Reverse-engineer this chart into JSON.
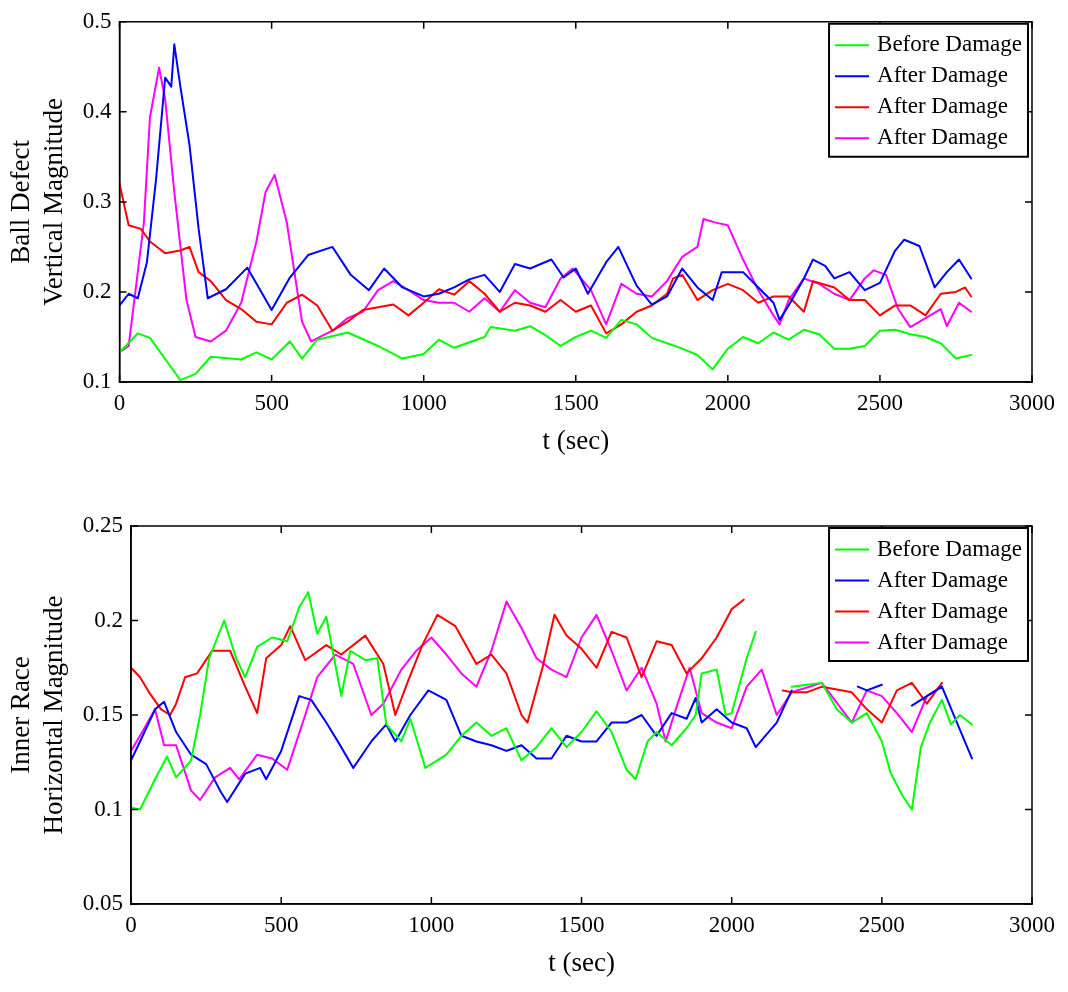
{
  "chart_data": [
    {
      "type": "line",
      "xlabel": "t (sec)",
      "ylabel": "Ball Defect\nVertical Magnitude",
      "xlim": [
        0,
        3000
      ],
      "xticks": [
        0,
        500,
        1000,
        1500,
        2000,
        2500,
        3000
      ],
      "ylim": [
        0.1,
        0.5
      ],
      "yticks": [
        0.1,
        0.2,
        0.3,
        0.4,
        0.5
      ],
      "legend": "top right",
      "series": [
        {
          "name": "Before Damage",
          "color": "#00ff00",
          "x": [
            0,
            60,
            100,
            200,
            250,
            300,
            400,
            450,
            500,
            560,
            600,
            650,
            750,
            850,
            930,
            1000,
            1050,
            1100,
            1200,
            1220,
            1300,
            1350,
            1400,
            1450,
            1500,
            1550,
            1600,
            1650,
            1700,
            1750,
            1800,
            1850,
            1900,
            1950,
            2000,
            2050,
            2100,
            2150,
            2200,
            2250,
            2300,
            2350,
            2400,
            2450,
            2500,
            2550,
            2600,
            2650,
            2700,
            2750,
            2800
          ],
          "values": [
            0.133,
            0.154,
            0.149,
            0.102,
            0.109,
            0.128,
            0.125,
            0.133,
            0.125,
            0.145,
            0.126,
            0.147,
            0.155,
            0.14,
            0.126,
            0.131,
            0.147,
            0.138,
            0.15,
            0.161,
            0.157,
            0.162,
            0.152,
            0.14,
            0.15,
            0.157,
            0.149,
            0.169,
            0.164,
            0.149,
            0.143,
            0.137,
            0.13,
            0.114,
            0.137,
            0.15,
            0.143,
            0.155,
            0.147,
            0.158,
            0.153,
            0.137,
            0.137,
            0.14,
            0.157,
            0.158,
            0.153,
            0.15,
            0.143,
            0.126,
            0.13
          ]
        },
        {
          "name": "After Damage",
          "color": "#0000ff",
          "x": [
            0,
            30,
            60,
            90,
            120,
            150,
            170,
            180,
            200,
            230,
            260,
            290,
            350,
            420,
            500,
            560,
            620,
            700,
            760,
            820,
            870,
            930,
            1000,
            1050,
            1100,
            1150,
            1200,
            1250,
            1300,
            1350,
            1420,
            1460,
            1500,
            1540,
            1600,
            1640,
            1700,
            1750,
            1800,
            1850,
            1900,
            1950,
            1980,
            2050,
            2100,
            2150,
            2170,
            2200,
            2250,
            2280,
            2320,
            2350,
            2400,
            2450,
            2500,
            2550,
            2580,
            2630,
            2680,
            2720,
            2760,
            2800
          ],
          "values": [
            0.185,
            0.198,
            0.193,
            0.233,
            0.325,
            0.438,
            0.428,
            0.475,
            0.428,
            0.363,
            0.27,
            0.193,
            0.203,
            0.227,
            0.18,
            0.216,
            0.241,
            0.25,
            0.219,
            0.202,
            0.226,
            0.205,
            0.195,
            0.198,
            0.205,
            0.214,
            0.219,
            0.2,
            0.231,
            0.226,
            0.236,
            0.216,
            0.226,
            0.198,
            0.233,
            0.25,
            0.207,
            0.186,
            0.195,
            0.226,
            0.205,
            0.191,
            0.222,
            0.222,
            0.205,
            0.188,
            0.169,
            0.185,
            0.215,
            0.236,
            0.229,
            0.215,
            0.222,
            0.202,
            0.21,
            0.246,
            0.258,
            0.251,
            0.205,
            0.222,
            0.236,
            0.215
          ]
        },
        {
          "name": "After Damage",
          "color": "#ff0000",
          "x": [
            0,
            30,
            70,
            100,
            150,
            200,
            230,
            260,
            300,
            350,
            400,
            450,
            500,
            550,
            600,
            650,
            700,
            750,
            800,
            850,
            900,
            950,
            1000,
            1050,
            1100,
            1150,
            1200,
            1250,
            1300,
            1350,
            1400,
            1450,
            1500,
            1550,
            1600,
            1650,
            1700,
            1750,
            1800,
            1820,
            1850,
            1900,
            1950,
            2000,
            2050,
            2100,
            2150,
            2200,
            2250,
            2280,
            2350,
            2400,
            2450,
            2500,
            2550,
            2600,
            2650,
            2700,
            2750,
            2780,
            2800
          ],
          "values": [
            0.32,
            0.274,
            0.27,
            0.256,
            0.243,
            0.246,
            0.25,
            0.222,
            0.212,
            0.191,
            0.181,
            0.167,
            0.164,
            0.188,
            0.197,
            0.185,
            0.157,
            0.167,
            0.18,
            0.183,
            0.186,
            0.174,
            0.188,
            0.203,
            0.197,
            0.212,
            0.198,
            0.178,
            0.188,
            0.185,
            0.178,
            0.191,
            0.178,
            0.185,
            0.154,
            0.164,
            0.178,
            0.185,
            0.198,
            0.215,
            0.219,
            0.191,
            0.202,
            0.209,
            0.202,
            0.188,
            0.195,
            0.195,
            0.178,
            0.212,
            0.205,
            0.191,
            0.191,
            0.174,
            0.185,
            0.185,
            0.174,
            0.198,
            0.2,
            0.205,
            0.195
          ]
        },
        {
          "name": "After Damage",
          "color": "#ff00ff",
          "x": [
            0,
            30,
            80,
            100,
            130,
            150,
            180,
            220,
            250,
            300,
            350,
            400,
            450,
            480,
            510,
            550,
            600,
            630,
            700,
            750,
            800,
            850,
            900,
            950,
            1000,
            1050,
            1100,
            1150,
            1200,
            1250,
            1300,
            1350,
            1400,
            1450,
            1490,
            1550,
            1600,
            1650,
            1700,
            1750,
            1800,
            1850,
            1900,
            1920,
            1960,
            2000,
            2050,
            2100,
            2150,
            2170,
            2200,
            2250,
            2300,
            2350,
            2400,
            2450,
            2480,
            2520,
            2560,
            2600,
            2650,
            2700,
            2720,
            2760,
            2800
          ],
          "values": [
            0.133,
            0.14,
            0.277,
            0.394,
            0.449,
            0.414,
            0.311,
            0.191,
            0.15,
            0.145,
            0.157,
            0.188,
            0.256,
            0.311,
            0.33,
            0.277,
            0.167,
            0.145,
            0.157,
            0.171,
            0.178,
            0.202,
            0.212,
            0.202,
            0.191,
            0.188,
            0.188,
            0.178,
            0.193,
            0.178,
            0.202,
            0.188,
            0.183,
            0.215,
            0.226,
            0.202,
            0.164,
            0.209,
            0.198,
            0.195,
            0.212,
            0.239,
            0.25,
            0.281,
            0.277,
            0.274,
            0.236,
            0.202,
            0.174,
            0.164,
            0.191,
            0.215,
            0.209,
            0.198,
            0.191,
            0.215,
            0.224,
            0.219,
            0.181,
            0.161,
            0.171,
            0.181,
            0.162,
            0.188,
            0.178
          ]
        }
      ]
    },
    {
      "type": "line",
      "xlabel": "t (sec)",
      "ylabel": "Inner Race\nHorizontal Magnitude",
      "xlim": [
        0,
        3000
      ],
      "xticks": [
        0,
        500,
        1000,
        1500,
        2000,
        2500,
        3000
      ],
      "ylim": [
        0.05,
        0.25
      ],
      "yticks": [
        0.05,
        0.1,
        0.15,
        0.2,
        0.25
      ],
      "legend": "top right",
      "series": [
        {
          "name": "Before Damage",
          "color": "#00ff00",
          "x": [
            0,
            30,
            80,
            120,
            150,
            200,
            230,
            260,
            310,
            350,
            380,
            420,
            470,
            520,
            560,
            590,
            620,
            650,
            700,
            730,
            780,
            820,
            850,
            900,
            930,
            980,
            1050,
            1100,
            1150,
            1200,
            1250,
            1300,
            1350,
            1400,
            1450,
            1500,
            1550,
            1600,
            1650,
            1680,
            1720,
            1750,
            1800,
            1850,
            1880,
            1900,
            1950,
            1980,
            2000,
            2050,
            2080,
            2130,
            2200,
            2250,
            2300,
            2350,
            2400,
            2450,
            2500,
            2530,
            2570,
            2600,
            2630,
            2660,
            2700,
            2730,
            2760,
            2800
          ],
          "values": [
            0.101,
            0.1,
            0.116,
            0.128,
            0.117,
            0.126,
            0.15,
            0.18,
            0.2,
            0.18,
            0.17,
            0.186,
            0.191,
            0.189,
            0.207,
            0.215,
            0.193,
            0.202,
            0.16,
            0.184,
            0.179,
            0.18,
            0.145,
            0.136,
            0.148,
            0.122,
            0.129,
            0.139,
            0.146,
            0.139,
            0.143,
            0.126,
            0.133,
            0.143,
            0.133,
            0.141,
            0.152,
            0.141,
            0.121,
            0.116,
            0.136,
            0.141,
            0.134,
            0.143,
            0.15,
            0.172,
            0.174,
            0.15,
            0.151,
            0.18,
            0.194,
            null,
            0.165,
            0.166,
            0.167,
            0.153,
            0.146,
            0.151,
            0.136,
            0.119,
            0.107,
            0.1,
            0.133,
            0.146,
            0.158,
            0.145,
            0.15,
            0.145
          ]
        },
        {
          "name": "After Damage",
          "color": "#0000ff",
          "x": [
            0,
            30,
            80,
            110,
            150,
            200,
            250,
            300,
            320,
            380,
            430,
            450,
            500,
            560,
            600,
            650,
            700,
            740,
            800,
            850,
            880,
            930,
            990,
            1050,
            1100,
            1150,
            1200,
            1250,
            1300,
            1350,
            1400,
            1450,
            1500,
            1550,
            1600,
            1650,
            1700,
            1750,
            1800,
            1850,
            1880,
            1900,
            1950,
            2000,
            2050,
            2080,
            2150,
            2200,
            2300,
            2420,
            2450,
            2500,
            2550,
            2600,
            2650,
            2700,
            2750,
            2800
          ],
          "values": [
            0.126,
            0.136,
            0.153,
            0.157,
            0.141,
            0.129,
            0.124,
            0.109,
            0.104,
            0.119,
            0.122,
            0.116,
            0.131,
            0.16,
            0.158,
            0.146,
            0.133,
            0.122,
            0.136,
            0.145,
            0.136,
            0.15,
            0.163,
            0.158,
            0.139,
            0.136,
            0.134,
            0.131,
            0.134,
            0.127,
            0.127,
            0.139,
            0.136,
            0.136,
            0.146,
            0.146,
            0.15,
            0.139,
            0.151,
            0.148,
            0.159,
            0.146,
            0.153,
            0.146,
            0.143,
            0.133,
            0.146,
            0.163,
            null,
            0.165,
            0.163,
            0.166,
            null,
            0.155,
            0.16,
            0.165,
            0.146,
            0.127
          ]
        },
        {
          "name": "After Damage",
          "color": "#ff0000",
          "x": [
            0,
            30,
            60,
            100,
            130,
            150,
            180,
            220,
            270,
            330,
            380,
            420,
            450,
            500,
            530,
            580,
            650,
            700,
            780,
            840,
            880,
            920,
            970,
            1020,
            1080,
            1150,
            1200,
            1250,
            1300,
            1320,
            1370,
            1410,
            1450,
            1500,
            1550,
            1600,
            1650,
            1700,
            1750,
            1800,
            1850,
            1900,
            1950,
            2000,
            2040,
            2100,
            2170,
            2200,
            2250,
            2300,
            2400,
            2450,
            2500,
            2550,
            2600,
            2650,
            2700
          ],
          "values": [
            0.175,
            0.17,
            0.162,
            0.153,
            0.15,
            0.156,
            0.17,
            0.172,
            0.184,
            0.184,
            0.165,
            0.151,
            0.18,
            0.187,
            0.197,
            0.179,
            0.187,
            0.182,
            0.192,
            0.177,
            0.15,
            0.167,
            0.187,
            0.203,
            0.197,
            0.177,
            0.182,
            0.172,
            0.15,
            0.146,
            0.175,
            0.203,
            0.192,
            0.185,
            0.175,
            0.194,
            0.191,
            0.17,
            0.189,
            0.187,
            0.172,
            0.18,
            0.191,
            0.206,
            0.211,
            null,
            0.163,
            0.162,
            0.162,
            0.165,
            0.162,
            0.153,
            0.146,
            0.163,
            0.167,
            0.156,
            0.167
          ]
        },
        {
          "name": "After Damage",
          "color": "#ff00ff",
          "x": [
            0,
            30,
            80,
            110,
            150,
            200,
            230,
            280,
            330,
            360,
            420,
            470,
            520,
            580,
            620,
            680,
            740,
            800,
            840,
            900,
            950,
            1000,
            1050,
            1100,
            1150,
            1200,
            1250,
            1300,
            1350,
            1400,
            1450,
            1500,
            1550,
            1600,
            1650,
            1700,
            1750,
            1780,
            1820,
            1860,
            1900,
            1950,
            2000,
            2050,
            2100,
            2150,
            2200,
            2300,
            2400,
            2450,
            2500,
            2550,
            2600,
            2650,
            2700
          ],
          "values": [
            0.131,
            0.139,
            0.153,
            0.134,
            0.134,
            0.11,
            0.105,
            0.117,
            0.122,
            0.116,
            0.129,
            0.127,
            0.121,
            0.15,
            0.17,
            0.182,
            0.177,
            0.15,
            0.156,
            0.174,
            0.184,
            0.191,
            0.182,
            0.172,
            0.165,
            0.184,
            0.21,
            0.196,
            0.18,
            0.174,
            0.17,
            0.191,
            0.203,
            0.184,
            0.163,
            0.175,
            0.156,
            0.136,
            0.156,
            0.175,
            0.151,
            0.146,
            0.143,
            0.165,
            0.174,
            0.15,
            0.162,
            0.167,
            0.146,
            0.163,
            0.16,
            0.151,
            0.141,
            0.16,
            0.165
          ]
        }
      ]
    }
  ]
}
